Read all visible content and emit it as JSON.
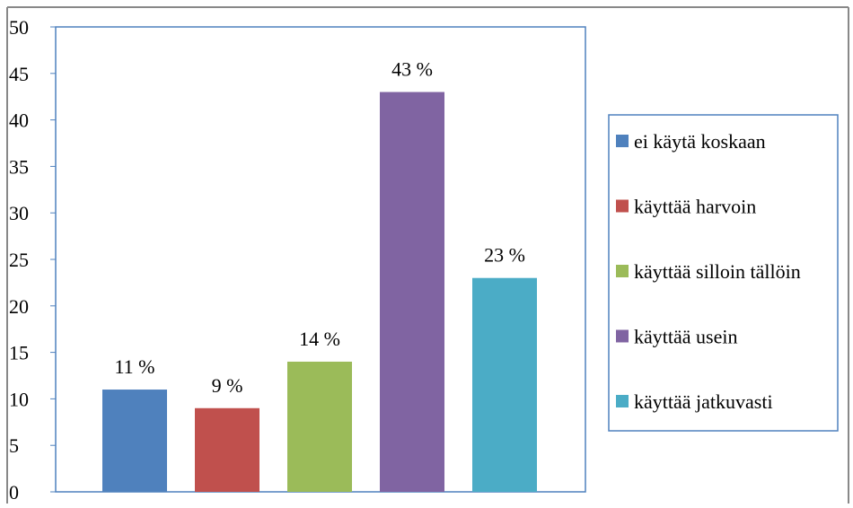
{
  "chart_data": {
    "type": "bar",
    "categories": [
      "ei käytä koskaan",
      "käyttää harvoin",
      "käyttää silloin tällöin",
      "käyttää usein",
      "käyttää jatkuvasti"
    ],
    "values": [
      11,
      9,
      14,
      43,
      23
    ],
    "data_labels": [
      "11 %",
      "9 %",
      "14 %",
      "43 %",
      "23 %"
    ],
    "colors": [
      "#4F81BD",
      "#C0504D",
      "#9BBB59",
      "#8064A2",
      "#4BACC6"
    ],
    "yticks": [
      "0",
      "5",
      "10",
      "15",
      "20",
      "25",
      "30",
      "35",
      "40",
      "45",
      "50"
    ],
    "ylim": [
      0,
      50
    ],
    "grid": false,
    "legend_position": "right",
    "legend": [
      "ei käytä koskaan",
      "käyttää harvoin",
      "käyttää silloin tällöin",
      "käyttää usein",
      "käyttää jatkuvasti"
    ]
  }
}
